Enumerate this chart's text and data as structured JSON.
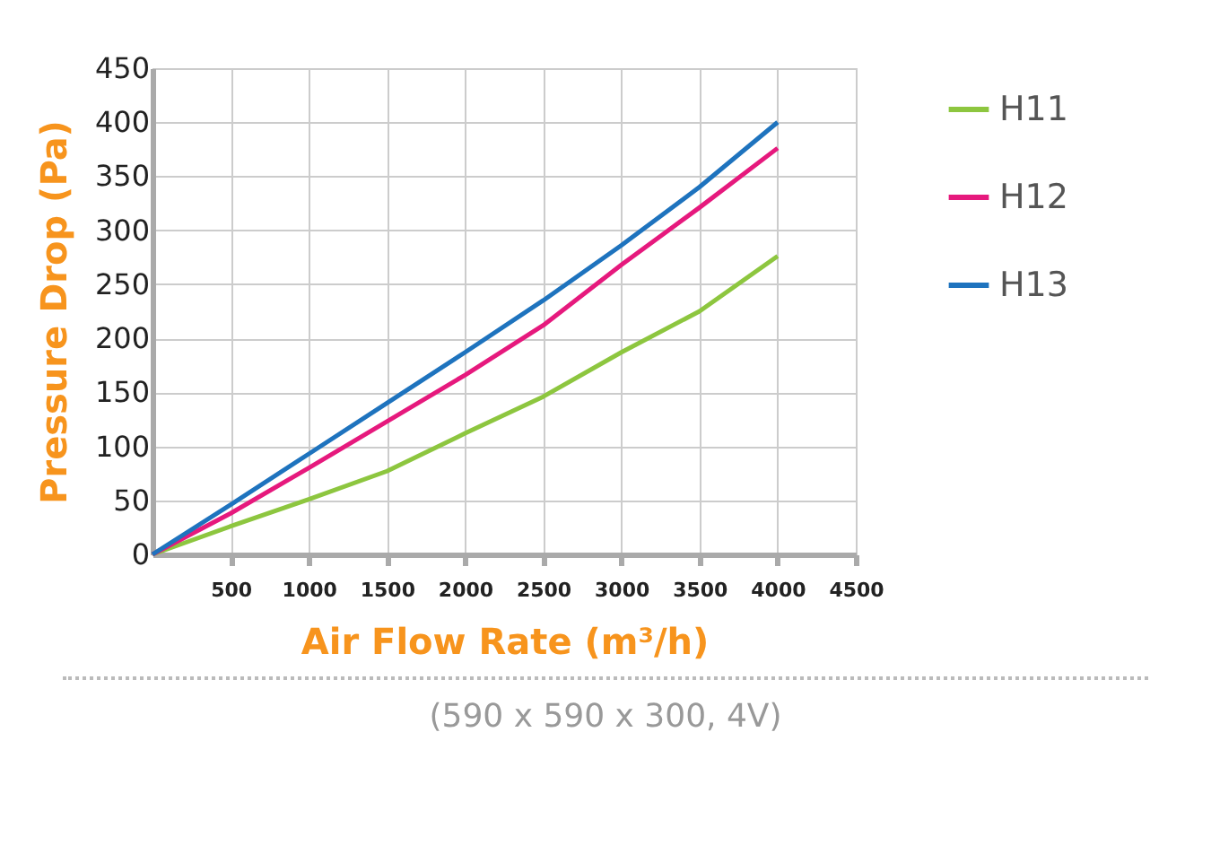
{
  "chart_data": {
    "type": "line",
    "xlabel": "Air Flow Rate (m³/h)",
    "ylabel": "Pressure Drop (Pa)",
    "x": [
      0,
      500,
      1000,
      1500,
      2000,
      2500,
      3000,
      3500,
      4000
    ],
    "series": [
      {
        "name": "H11",
        "color": "#8dc63f",
        "values": [
          0,
          26,
          51,
          77,
          112,
          146,
          187,
          225,
          276
        ]
      },
      {
        "name": "H12",
        "color": "#e6197d",
        "values": [
          0,
          38,
          80,
          123,
          166,
          212,
          268,
          321,
          376
        ]
      },
      {
        "name": "H13",
        "color": "#1e73be",
        "values": [
          0,
          46,
          93,
          140,
          187,
          235,
          286,
          340,
          400
        ]
      }
    ],
    "xlim": [
      0,
      4500
    ],
    "xticks": [
      500,
      1000,
      1500,
      2000,
      2500,
      3000,
      3500,
      4000,
      4500
    ],
    "ylim": [
      0,
      450
    ],
    "yticks": [
      0,
      50,
      100,
      150,
      200,
      250,
      300,
      350,
      400,
      450
    ],
    "grid": true,
    "legend": "right",
    "annotations": [
      "(590 x 590 x 300, 4V)"
    ]
  }
}
